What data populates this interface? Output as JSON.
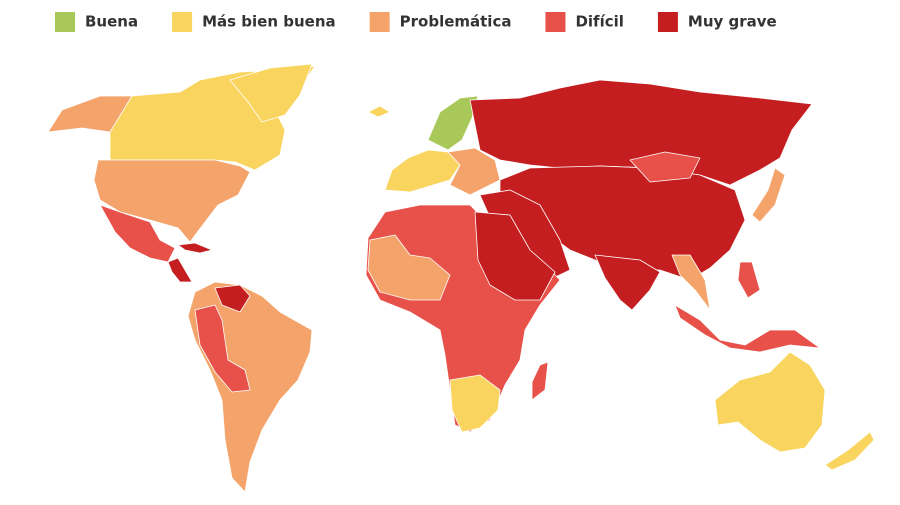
{
  "legend": [
    {
      "label": "Buena",
      "color": "#a9c85a"
    },
    {
      "label": "Más bien buena",
      "color": "#f9d55f"
    },
    {
      "label": "Problemática",
      "color": "#f4a46a"
    },
    {
      "label": "Difícil",
      "color": "#e8514a"
    },
    {
      "label": "Muy grave",
      "color": "#c41e20"
    }
  ]
}
